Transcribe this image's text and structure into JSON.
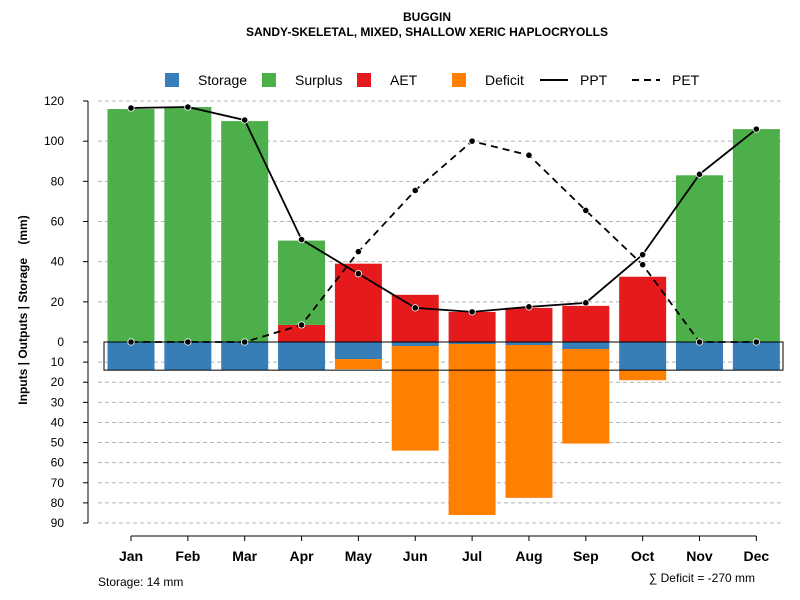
{
  "chart_data": {
    "type": "bar",
    "title": "BUGGIN",
    "subtitle": "SANDY-SKELETAL, MIXED, SHALLOW XERIC HAPLOCRYOLLS",
    "ylabel": "Inputs | Outputs | Storage    (mm)",
    "xlabel": "",
    "categories": [
      "Jan",
      "Feb",
      "Mar",
      "Apr",
      "May",
      "Jun",
      "Jul",
      "Aug",
      "Sep",
      "Oct",
      "Nov",
      "Dec"
    ],
    "ylim_top": [
      0,
      120
    ],
    "ylim_bottom": [
      0,
      90
    ],
    "yticks_top": [
      "0",
      "20",
      "40",
      "60",
      "80",
      "100",
      "120"
    ],
    "yticks_bottom": [
      "10",
      "20",
      "30",
      "40",
      "50",
      "60",
      "70",
      "80",
      "90"
    ],
    "grid": true,
    "legend_position": "top",
    "colors": {
      "storage": "#377EB8",
      "surplus": "#4DAF4A",
      "aet": "#E41A1C",
      "deficit": "#FF7F00"
    },
    "legend": [
      {
        "key": "storage",
        "label": "Storage",
        "kind": "box"
      },
      {
        "key": "surplus",
        "label": "Surplus",
        "kind": "box"
      },
      {
        "key": "aet",
        "label": "AET",
        "kind": "box"
      },
      {
        "key": "deficit",
        "label": "Deficit",
        "kind": "box"
      },
      {
        "key": "ppt",
        "label": "PPT",
        "kind": "solid"
      },
      {
        "key": "pet",
        "label": "PET",
        "kind": "dashed"
      }
    ],
    "series": [
      {
        "name": "Surplus",
        "values": [
          116,
          117,
          110,
          42,
          0,
          0,
          0,
          0,
          0,
          0,
          83,
          106
        ]
      },
      {
        "name": "AET",
        "values": [
          0,
          0,
          0,
          8.5,
          39,
          23.5,
          15,
          17,
          18,
          32.5,
          0,
          0
        ]
      },
      {
        "name": "Storage",
        "values": [
          14,
          14,
          14,
          14,
          8.5,
          2,
          1,
          1.5,
          3.5,
          14,
          14,
          14
        ]
      },
      {
        "name": "Deficit",
        "values": [
          0,
          0,
          0,
          0,
          5,
          52,
          85,
          76,
          47,
          5,
          0,
          0
        ]
      },
      {
        "name": "PPT",
        "values": [
          116.5,
          117,
          110.5,
          51,
          34,
          17,
          15,
          17.5,
          19.5,
          43.5,
          83.5,
          106
        ]
      },
      {
        "name": "PET",
        "values": [
          0,
          0,
          0,
          8.5,
          45,
          75.5,
          100,
          93,
          65.5,
          38.5,
          0,
          0
        ]
      }
    ],
    "storage_text": "Storage: 14 mm",
    "deficit_text": "∑ Deficit = -270 mm"
  }
}
